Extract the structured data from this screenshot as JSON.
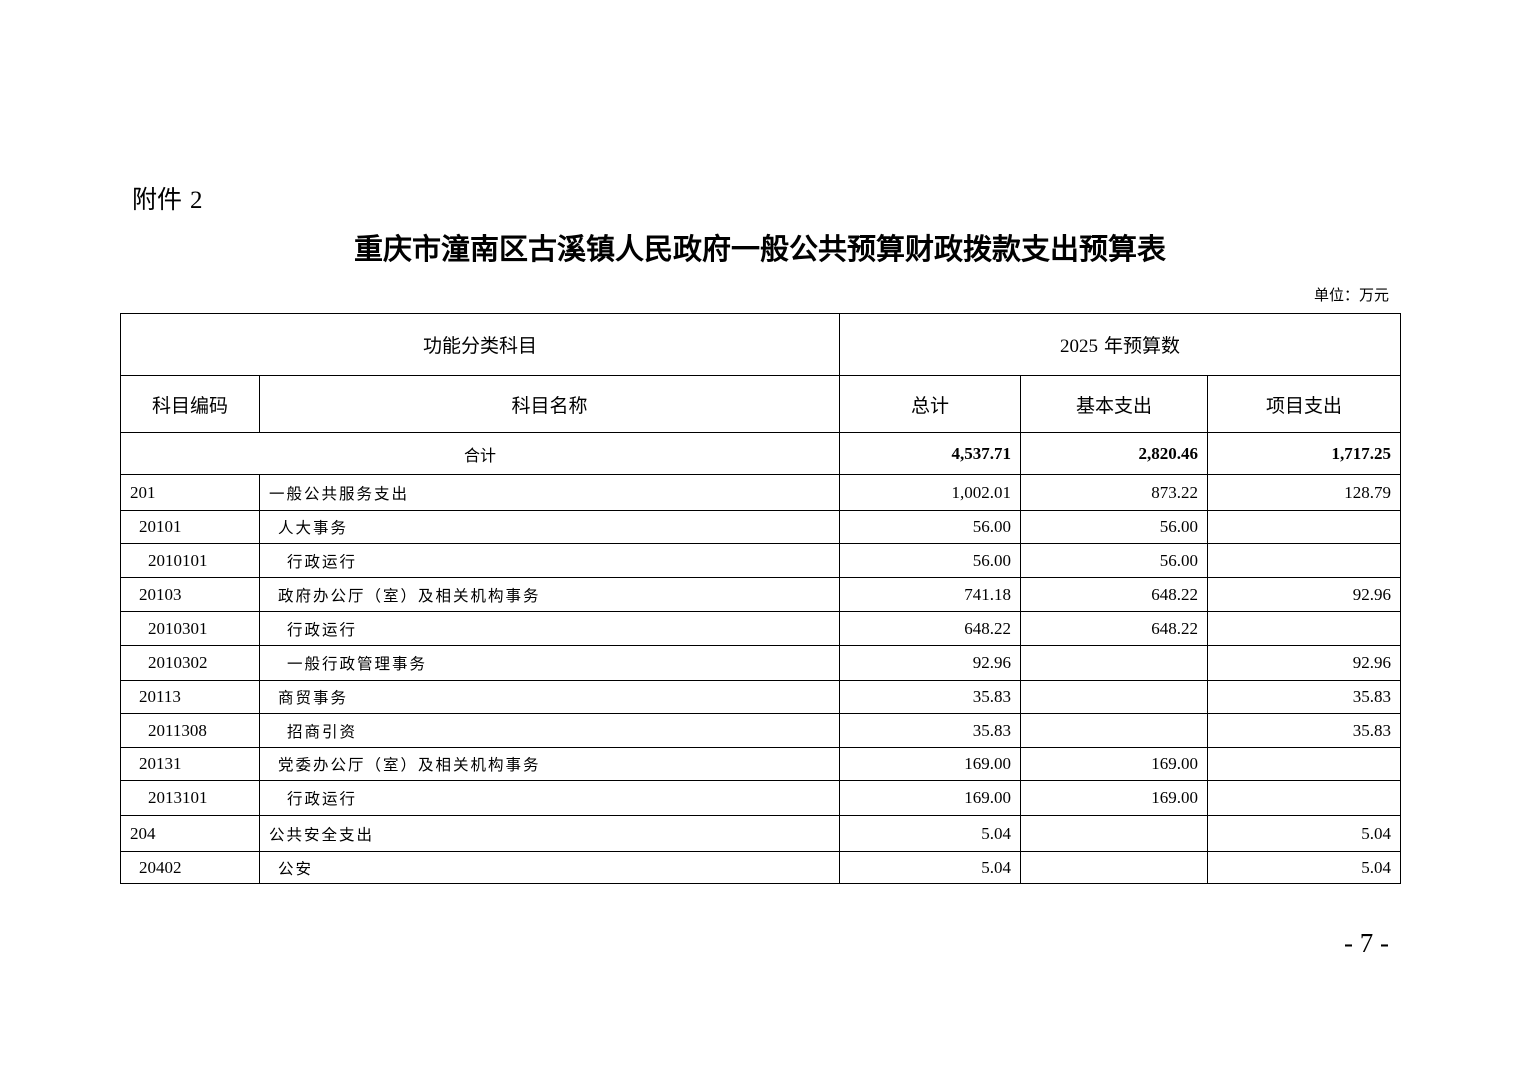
{
  "attachment_label": "附件",
  "attachment_number": "2",
  "title": "重庆市潼南区古溪镇人民政府一般公共预算财政拨款支出预算表",
  "unit": "单位：万元",
  "table": {
    "group_headers": {
      "functional": "功能分类科目",
      "budget_year": "2025",
      "budget_label": "年预算数"
    },
    "columns": {
      "code": "科目编码",
      "name": "科目名称",
      "total": "总计",
      "basic": "基本支出",
      "project": "项目支出"
    },
    "total_row": {
      "label": "合计",
      "total": "4,537.71",
      "basic": "2,820.46",
      "project": "1,717.25"
    },
    "rows": [
      {
        "code": "201",
        "name": "一般公共服务支出",
        "level": 1,
        "total": "1,002.01",
        "basic": "873.22",
        "project": "128.79"
      },
      {
        "code": "20101",
        "name": "人大事务",
        "level": 2,
        "total": "56.00",
        "basic": "56.00",
        "project": ""
      },
      {
        "code": "2010101",
        "name": "行政运行",
        "level": 3,
        "total": "56.00",
        "basic": "56.00",
        "project": ""
      },
      {
        "code": "20103",
        "name": "政府办公厅（室）及相关机构事务",
        "level": 2,
        "total": "741.18",
        "basic": "648.22",
        "project": "92.96"
      },
      {
        "code": "2010301",
        "name": "行政运行",
        "level": 3,
        "total": "648.22",
        "basic": "648.22",
        "project": ""
      },
      {
        "code": "2010302",
        "name": "一般行政管理事务",
        "level": 3,
        "total": "92.96",
        "basic": "",
        "project": "92.96"
      },
      {
        "code": "20113",
        "name": "商贸事务",
        "level": 2,
        "total": "35.83",
        "basic": "",
        "project": "35.83"
      },
      {
        "code": "2011308",
        "name": "招商引资",
        "level": 3,
        "total": "35.83",
        "basic": "",
        "project": "35.83"
      },
      {
        "code": "20131",
        "name": "党委办公厅（室）及相关机构事务",
        "level": 2,
        "total": "169.00",
        "basic": "169.00",
        "project": ""
      },
      {
        "code": "2013101",
        "name": "行政运行",
        "level": 3,
        "total": "169.00",
        "basic": "169.00",
        "project": ""
      },
      {
        "code": "204",
        "name": "公共安全支出",
        "level": 1,
        "total": "5.04",
        "basic": "",
        "project": "5.04"
      },
      {
        "code": "20402",
        "name": "公安",
        "level": 2,
        "total": "5.04",
        "basic": "",
        "project": "5.04"
      }
    ]
  },
  "page_number": "- 7 -"
}
